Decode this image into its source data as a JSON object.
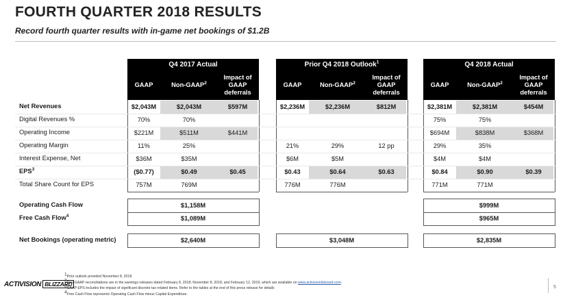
{
  "title": "FOURTH QUARTER 2018 RESULTS",
  "subtitle": "Record fourth quarter results with in-game net bookings of $1.2B",
  "groups": [
    {
      "title": "Q4 2017 Actual",
      "cols": [
        "GAAP",
        "Non-GAAP",
        "Impact of GAAP deferrals"
      ],
      "sup": "2"
    },
    {
      "title": "Prior Q4 2018 Outlook",
      "title_sup": "1",
      "cols": [
        "GAAP",
        "Non-GAAP",
        "Impact of GAAP deferrals"
      ],
      "sup": "2"
    },
    {
      "title": "Q4 2018 Actual",
      "cols": [
        "GAAP",
        "Non-GAAP",
        "Impact of GAAP deferrals"
      ],
      "sup": "2"
    }
  ],
  "rows": [
    {
      "label": "Net Revenues",
      "bold": true,
      "values": [
        "$2,043M",
        "$2,043M",
        "$597M",
        "$2,236M",
        "$2,236M",
        "$812M",
        "$2,381M",
        "$2,381M",
        "$454M"
      ]
    },
    {
      "label": "Digital Revenues %",
      "values": [
        "70%",
        "70%",
        "",
        "",
        "",
        "",
        "75%",
        "75%",
        ""
      ]
    },
    {
      "label": "Operating Income",
      "values": [
        "$221M",
        "$511M",
        "$441M",
        "",
        "",
        "",
        "$694M",
        "$838M",
        "$368M"
      ]
    },
    {
      "label": "Operating Margin",
      "values": [
        "11%",
        "25%",
        "",
        "21%",
        "29%",
        "12 pp",
        "29%",
        "35%",
        ""
      ]
    },
    {
      "label": "Interest Expense, Net",
      "values": [
        "$36M",
        "$35M",
        "",
        "$6M",
        "$5M",
        "",
        "$4M",
        "$4M",
        ""
      ]
    },
    {
      "label": "EPS",
      "label_sup": "3",
      "bold": true,
      "values": [
        "($0.77)",
        "$0.49",
        "$0.45",
        "$0.43",
        "$0.64",
        "$0.63",
        "$0.84",
        "$0.90",
        "$0.39"
      ]
    },
    {
      "label": "Total Share Count for EPS",
      "values": [
        "757M",
        "769M",
        "",
        "776M",
        "776M",
        "",
        "771M",
        "771M",
        ""
      ]
    }
  ],
  "cashflow": [
    {
      "label": "Operating Cash Flow",
      "q4_2017": "$1,158M",
      "q4_2018": "$999M"
    },
    {
      "label": "Free Cash Flow",
      "label_sup": "4",
      "q4_2017": "$1,089M",
      "q4_2018": "$965M"
    }
  ],
  "bookings": {
    "label": "Net Bookings (operating metric)",
    "q4_2017": "$2,640M",
    "outlook": "$3,048M",
    "q4_2018": "$2,835M"
  },
  "footnotes": [
    {
      "n": "1",
      "text": "Prior outlook provided November 8, 2018."
    },
    {
      "n": "2",
      "text": "Non-GAAP reconciliations are in the earnings releases dated February 8, 2018, November 8, 2018, and February 12, 2019, which are available on ",
      "link": "www.activisionblizzard.com",
      "tail": "."
    },
    {
      "n": "3",
      "text": "GAAP EPS includes the impact of significant discrete tax related items. Refer to the tables at the end of this press release for details"
    },
    {
      "n": "4",
      "text": "Free Cash Flow represents Operating Cash Flow minus Capital Expenditure."
    }
  ],
  "logo": {
    "part1": "ACTIVISION",
    "part2": "BLIZZARD"
  },
  "page_number": "5",
  "colors": {
    "header_bg": "#000000",
    "shade": "#d9d9d9"
  }
}
